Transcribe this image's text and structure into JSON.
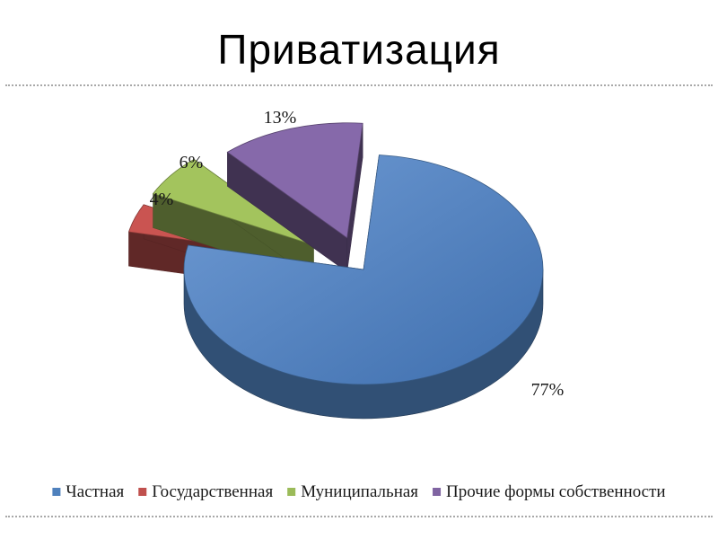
{
  "slide": {
    "title": "Приватизация"
  },
  "chart_data": {
    "type": "pie",
    "title": "",
    "legend_position": "bottom",
    "slices": [
      {
        "label": "Частная",
        "value": 77,
        "value_label": "77%",
        "color": "#4f81bd"
      },
      {
        "label": "Государственная",
        "value": 4,
        "value_label": "4%",
        "color": "#c0504d"
      },
      {
        "label": "Муниципальная",
        "value": 6,
        "value_label": "6%",
        "color": "#9bbb59"
      },
      {
        "label": "Прочие формы собственности",
        "value": 13,
        "value_label": "13%",
        "color": "#8064a2"
      }
    ]
  }
}
